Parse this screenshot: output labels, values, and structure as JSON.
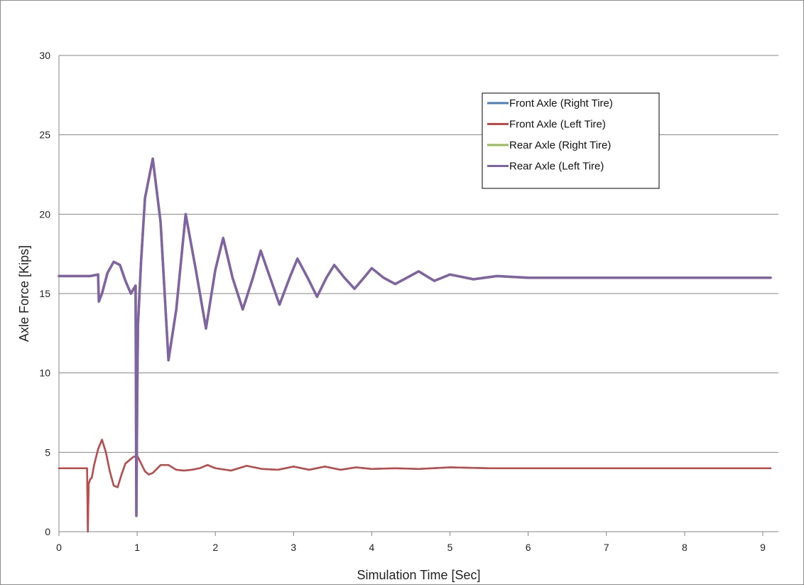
{
  "chart_data": {
    "type": "line",
    "title": "",
    "xlabel": "Simulation Time [Sec]",
    "ylabel": "Axle Force [Kips]",
    "xlim": [
      0,
      9.2
    ],
    "ylim": [
      0,
      30
    ],
    "xticks": [
      0,
      1,
      2,
      3,
      4,
      5,
      6,
      7,
      8,
      9
    ],
    "yticks": [
      0,
      5,
      10,
      15,
      20,
      25,
      30
    ],
    "grid": "horizontal",
    "legend_position": "top-right",
    "series": [
      {
        "name": "Front Axle (Right Tire)",
        "color": "#4a7ebb",
        "x": [
          0,
          0.36,
          0.37,
          0.38,
          0.4,
          0.42,
          0.45,
          0.5,
          0.55,
          0.6,
          0.65,
          0.7,
          0.75,
          0.8,
          0.85,
          0.9,
          0.95,
          1.0,
          1.05,
          1.1,
          1.15,
          1.2,
          1.3,
          1.4,
          1.5,
          1.6,
          1.7,
          1.8,
          1.9,
          2.0,
          2.2,
          2.4,
          2.6,
          2.8,
          3.0,
          3.2,
          3.4,
          3.6,
          3.8,
          4.0,
          4.3,
          4.6,
          5.0,
          5.5,
          6.0,
          7.0,
          8.0,
          9.1
        ],
        "y": [
          4.0,
          4.0,
          0.0,
          3.0,
          3.3,
          3.4,
          4.2,
          5.2,
          5.8,
          5.0,
          3.8,
          2.9,
          2.8,
          3.6,
          4.3,
          4.5,
          4.7,
          4.8,
          4.3,
          3.8,
          3.6,
          3.7,
          4.2,
          4.2,
          3.9,
          3.85,
          3.9,
          4.0,
          4.2,
          4.0,
          3.85,
          4.15,
          3.95,
          3.9,
          4.1,
          3.9,
          4.1,
          3.9,
          4.05,
          3.95,
          4.0,
          3.95,
          4.05,
          4.0,
          4.0,
          4.0,
          4.0,
          4.0
        ]
      },
      {
        "name": "Front Axle (Left Tire)",
        "color": "#be4b48",
        "x": [
          0,
          0.36,
          0.37,
          0.38,
          0.4,
          0.42,
          0.45,
          0.5,
          0.55,
          0.6,
          0.65,
          0.7,
          0.75,
          0.8,
          0.85,
          0.9,
          0.95,
          1.0,
          1.05,
          1.1,
          1.15,
          1.2,
          1.3,
          1.4,
          1.5,
          1.6,
          1.7,
          1.8,
          1.9,
          2.0,
          2.2,
          2.4,
          2.6,
          2.8,
          3.0,
          3.2,
          3.4,
          3.6,
          3.8,
          4.0,
          4.3,
          4.6,
          5.0,
          5.5,
          6.0,
          7.0,
          8.0,
          9.1
        ],
        "y": [
          4.0,
          4.0,
          0.0,
          3.0,
          3.3,
          3.4,
          4.2,
          5.2,
          5.8,
          5.0,
          3.8,
          2.9,
          2.8,
          3.6,
          4.3,
          4.5,
          4.7,
          4.8,
          4.3,
          3.8,
          3.6,
          3.7,
          4.2,
          4.2,
          3.9,
          3.85,
          3.9,
          4.0,
          4.2,
          4.0,
          3.85,
          4.15,
          3.95,
          3.9,
          4.1,
          3.9,
          4.1,
          3.9,
          4.05,
          3.95,
          4.0,
          3.95,
          4.05,
          4.0,
          4.0,
          4.0,
          4.0,
          4.0
        ]
      },
      {
        "name": "Rear Axle (Right Tire)",
        "color": "#98b954",
        "x": [
          0,
          0.4,
          0.5,
          0.51,
          0.55,
          0.62,
          0.7,
          0.78,
          0.85,
          0.92,
          0.98,
          0.99,
          1.0,
          1.01,
          1.05,
          1.1,
          1.2,
          1.3,
          1.4,
          1.5,
          1.62,
          1.75,
          1.88,
          2.0,
          2.1,
          2.22,
          2.35,
          2.48,
          2.58,
          2.7,
          2.82,
          2.95,
          3.05,
          3.18,
          3.3,
          3.42,
          3.52,
          3.65,
          3.78,
          3.9,
          4.0,
          4.15,
          4.3,
          4.45,
          4.6,
          4.8,
          5.0,
          5.3,
          5.6,
          6.0,
          6.5,
          7.0,
          8.0,
          9.1
        ],
        "y": [
          16.1,
          16.1,
          16.2,
          14.5,
          15.0,
          16.3,
          17.0,
          16.8,
          15.8,
          15.0,
          15.5,
          1.0,
          8.0,
          13.0,
          17.0,
          21.0,
          23.5,
          19.5,
          10.8,
          14.0,
          20.0,
          16.5,
          12.8,
          16.5,
          18.5,
          16.0,
          14.0,
          16.0,
          17.7,
          16.0,
          14.3,
          16.0,
          17.2,
          16.0,
          14.8,
          16.0,
          16.8,
          16.0,
          15.3,
          16.0,
          16.6,
          16.0,
          15.6,
          16.0,
          16.4,
          15.8,
          16.2,
          15.9,
          16.1,
          16.0,
          16.0,
          16.0,
          16.0,
          16.0
        ]
      },
      {
        "name": "Rear Axle (Left Tire)",
        "color": "#7f63a2",
        "x": [
          0,
          0.4,
          0.5,
          0.51,
          0.55,
          0.62,
          0.7,
          0.78,
          0.85,
          0.92,
          0.98,
          0.99,
          1.0,
          1.01,
          1.05,
          1.1,
          1.2,
          1.3,
          1.4,
          1.5,
          1.62,
          1.75,
          1.88,
          2.0,
          2.1,
          2.22,
          2.35,
          2.48,
          2.58,
          2.7,
          2.82,
          2.95,
          3.05,
          3.18,
          3.3,
          3.42,
          3.52,
          3.65,
          3.78,
          3.9,
          4.0,
          4.15,
          4.3,
          4.45,
          4.6,
          4.8,
          5.0,
          5.3,
          5.6,
          6.0,
          6.5,
          7.0,
          8.0,
          9.1
        ],
        "y": [
          16.1,
          16.1,
          16.2,
          14.5,
          15.0,
          16.3,
          17.0,
          16.8,
          15.8,
          15.0,
          15.5,
          1.0,
          8.0,
          13.0,
          17.0,
          21.0,
          23.5,
          19.5,
          10.8,
          14.0,
          20.0,
          16.5,
          12.8,
          16.5,
          18.5,
          16.0,
          14.0,
          16.0,
          17.7,
          16.0,
          14.3,
          16.0,
          17.2,
          16.0,
          14.8,
          16.0,
          16.8,
          16.0,
          15.3,
          16.0,
          16.6,
          16.0,
          15.6,
          16.0,
          16.4,
          15.8,
          16.2,
          15.9,
          16.1,
          16.0,
          16.0,
          16.0,
          16.0,
          16.0
        ]
      }
    ]
  }
}
